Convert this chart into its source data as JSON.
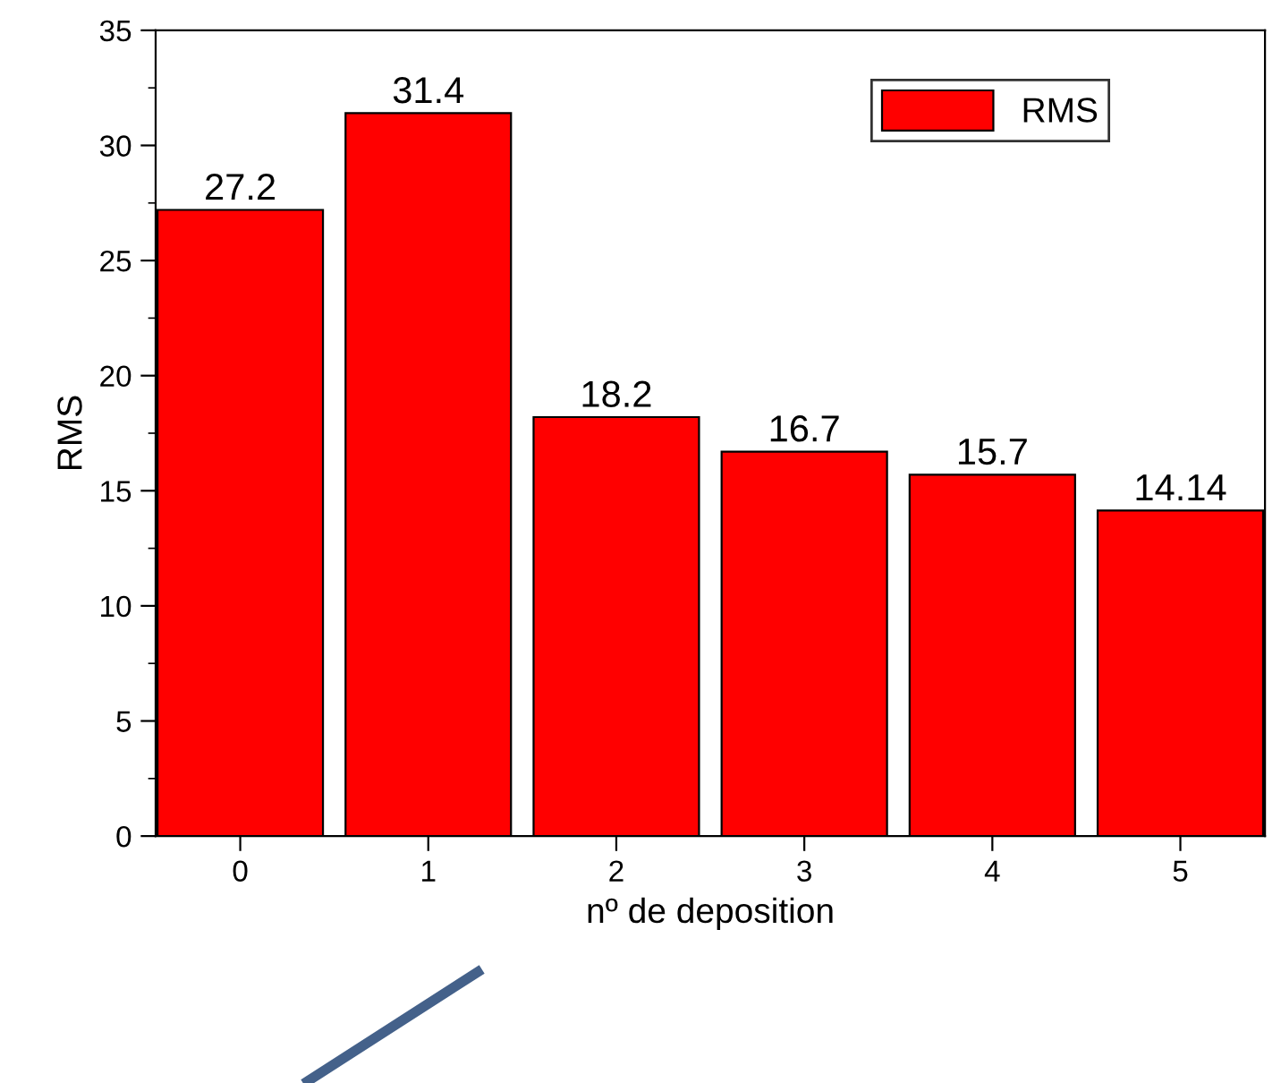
{
  "chart_data": {
    "type": "bar",
    "xlabel": "nº de deposition",
    "ylabel": "RMS",
    "categories": [
      "0",
      "1",
      "2",
      "3",
      "4",
      "5"
    ],
    "series": [
      {
        "name": "RMS",
        "color": "#ff0000",
        "values": [
          27.2,
          31.4,
          18.2,
          16.7,
          15.7,
          14.14
        ]
      }
    ],
    "ylim": [
      0,
      35
    ],
    "yticks": [
      0,
      5,
      10,
      15,
      20,
      25,
      30,
      35
    ],
    "data_labels": true,
    "legend": "top right",
    "grid": false
  }
}
